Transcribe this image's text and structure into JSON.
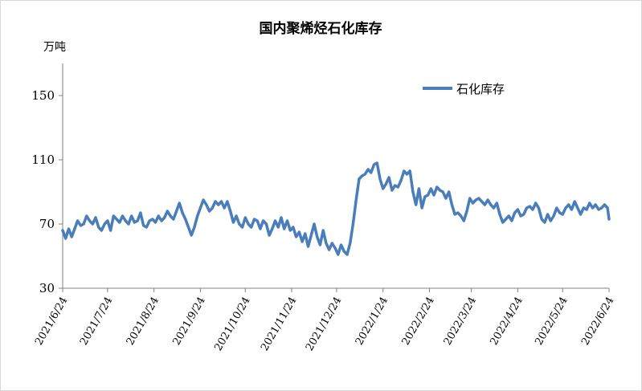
{
  "chart_data": {
    "type": "line",
    "title": "国内聚烯烃石化库存",
    "ylabel": "万吨",
    "xlabel": "",
    "ylim": [
      30,
      170
    ],
    "yticks": [
      30,
      70,
      110,
      150
    ],
    "x_start": "2021-06-24",
    "x_end": "2022-06-24",
    "x_ticks": [
      "2021/6/24",
      "2021/7/24",
      "2021/8/24",
      "2021/9/24",
      "2021/10/24",
      "2021/11/24",
      "2021/12/24",
      "2022/1/24",
      "2022/2/24",
      "2022/3/24",
      "2022/4/24",
      "2022/5/24",
      "2022/6/24"
    ],
    "grid": false,
    "legend_position": "top-right",
    "series": [
      {
        "name": "石化库存",
        "color": "#4a7ebb",
        "points": [
          [
            "2021-06-24",
            66
          ],
          [
            "2021-06-26",
            61
          ],
          [
            "2021-06-28",
            67
          ],
          [
            "2021-06-30",
            62
          ],
          [
            "2021-07-02",
            67
          ],
          [
            "2021-07-04",
            72
          ],
          [
            "2021-07-06",
            69
          ],
          [
            "2021-07-08",
            70
          ],
          [
            "2021-07-10",
            75
          ],
          [
            "2021-07-12",
            72
          ],
          [
            "2021-07-14",
            70
          ],
          [
            "2021-07-16",
            74
          ],
          [
            "2021-07-18",
            68
          ],
          [
            "2021-07-20",
            66
          ],
          [
            "2021-07-22",
            70
          ],
          [
            "2021-07-24",
            72
          ],
          [
            "2021-07-26",
            66
          ],
          [
            "2021-07-28",
            75
          ],
          [
            "2021-07-30",
            73
          ],
          [
            "2021-08-01",
            71
          ],
          [
            "2021-08-03",
            75
          ],
          [
            "2021-08-05",
            72
          ],
          [
            "2021-08-07",
            70
          ],
          [
            "2021-08-09",
            75
          ],
          [
            "2021-08-11",
            71
          ],
          [
            "2021-08-13",
            72
          ],
          [
            "2021-08-15",
            77
          ],
          [
            "2021-08-17",
            69
          ],
          [
            "2021-08-19",
            68
          ],
          [
            "2021-08-21",
            72
          ],
          [
            "2021-08-23",
            73
          ],
          [
            "2021-08-25",
            71
          ],
          [
            "2021-08-27",
            75
          ],
          [
            "2021-08-29",
            72
          ],
          [
            "2021-08-31",
            74
          ],
          [
            "2021-09-02",
            78
          ],
          [
            "2021-09-04",
            75
          ],
          [
            "2021-09-06",
            73
          ],
          [
            "2021-09-08",
            78
          ],
          [
            "2021-09-10",
            83
          ],
          [
            "2021-09-12",
            77
          ],
          [
            "2021-09-14",
            73
          ],
          [
            "2021-09-16",
            68
          ],
          [
            "2021-09-18",
            63
          ],
          [
            "2021-09-20",
            68
          ],
          [
            "2021-09-22",
            75
          ],
          [
            "2021-09-24",
            80
          ],
          [
            "2021-09-26",
            85
          ],
          [
            "2021-09-28",
            82
          ],
          [
            "2021-09-30",
            78
          ],
          [
            "2021-10-02",
            80
          ],
          [
            "2021-10-04",
            84
          ],
          [
            "2021-10-06",
            82
          ],
          [
            "2021-10-08",
            84
          ],
          [
            "2021-10-10",
            80
          ],
          [
            "2021-10-12",
            84
          ],
          [
            "2021-10-14",
            78
          ],
          [
            "2021-10-16",
            71
          ],
          [
            "2021-10-18",
            75
          ],
          [
            "2021-10-20",
            70
          ],
          [
            "2021-10-22",
            68
          ],
          [
            "2021-10-24",
            74
          ],
          [
            "2021-10-26",
            70
          ],
          [
            "2021-10-28",
            68
          ],
          [
            "2021-10-30",
            73
          ],
          [
            "2021-11-01",
            72
          ],
          [
            "2021-11-03",
            67
          ],
          [
            "2021-11-05",
            72
          ],
          [
            "2021-11-07",
            70
          ],
          [
            "2021-11-09",
            63
          ],
          [
            "2021-11-11",
            67
          ],
          [
            "2021-11-13",
            72
          ],
          [
            "2021-11-15",
            68
          ],
          [
            "2021-11-17",
            74
          ],
          [
            "2021-11-19",
            67
          ],
          [
            "2021-11-21",
            72
          ],
          [
            "2021-11-23",
            66
          ],
          [
            "2021-11-25",
            68
          ],
          [
            "2021-11-27",
            62
          ],
          [
            "2021-11-29",
            65
          ],
          [
            "2021-12-01",
            59
          ],
          [
            "2021-12-03",
            64
          ],
          [
            "2021-12-05",
            56
          ],
          [
            "2021-12-07",
            63
          ],
          [
            "2021-12-09",
            70
          ],
          [
            "2021-12-11",
            62
          ],
          [
            "2021-12-13",
            57
          ],
          [
            "2021-12-15",
            66
          ],
          [
            "2021-12-17",
            58
          ],
          [
            "2021-12-19",
            54
          ],
          [
            "2021-12-21",
            58
          ],
          [
            "2021-12-23",
            55
          ],
          [
            "2021-12-25",
            51
          ],
          [
            "2021-12-27",
            57
          ],
          [
            "2021-12-29",
            53
          ],
          [
            "2021-12-31",
            51
          ],
          [
            "2022-01-02",
            58
          ],
          [
            "2022-01-04",
            70
          ],
          [
            "2022-01-06",
            85
          ],
          [
            "2022-01-08",
            98
          ],
          [
            "2022-01-10",
            100
          ],
          [
            "2022-01-12",
            101
          ],
          [
            "2022-01-14",
            104
          ],
          [
            "2022-01-16",
            102
          ],
          [
            "2022-01-18",
            107
          ],
          [
            "2022-01-20",
            108
          ],
          [
            "2022-01-22",
            98
          ],
          [
            "2022-01-24",
            92
          ],
          [
            "2022-01-26",
            95
          ],
          [
            "2022-01-28",
            99
          ],
          [
            "2022-01-30",
            91
          ],
          [
            "2022-02-01",
            94
          ],
          [
            "2022-02-03",
            93
          ],
          [
            "2022-02-05",
            97
          ],
          [
            "2022-02-07",
            103
          ],
          [
            "2022-02-09",
            101
          ],
          [
            "2022-02-11",
            103
          ],
          [
            "2022-02-13",
            90
          ],
          [
            "2022-02-15",
            82
          ],
          [
            "2022-02-17",
            92
          ],
          [
            "2022-02-19",
            80
          ],
          [
            "2022-02-21",
            87
          ],
          [
            "2022-02-23",
            88
          ],
          [
            "2022-02-25",
            92
          ],
          [
            "2022-02-27",
            88
          ],
          [
            "2022-03-01",
            93
          ],
          [
            "2022-03-03",
            91
          ],
          [
            "2022-03-05",
            90
          ],
          [
            "2022-03-07",
            86
          ],
          [
            "2022-03-09",
            90
          ],
          [
            "2022-03-11",
            82
          ],
          [
            "2022-03-13",
            76
          ],
          [
            "2022-03-15",
            77
          ],
          [
            "2022-03-17",
            75
          ],
          [
            "2022-03-19",
            72
          ],
          [
            "2022-03-21",
            78
          ],
          [
            "2022-03-23",
            86
          ],
          [
            "2022-03-25",
            83
          ],
          [
            "2022-03-27",
            85
          ],
          [
            "2022-03-29",
            86
          ],
          [
            "2022-03-31",
            84
          ],
          [
            "2022-04-02",
            82
          ],
          [
            "2022-04-04",
            85
          ],
          [
            "2022-04-06",
            82
          ],
          [
            "2022-04-08",
            80
          ],
          [
            "2022-04-10",
            83
          ],
          [
            "2022-04-12",
            76
          ],
          [
            "2022-04-14",
            71
          ],
          [
            "2022-04-16",
            73
          ],
          [
            "2022-04-18",
            75
          ],
          [
            "2022-04-20",
            72
          ],
          [
            "2022-04-22",
            77
          ],
          [
            "2022-04-24",
            79
          ],
          [
            "2022-04-26",
            75
          ],
          [
            "2022-04-28",
            76
          ],
          [
            "2022-04-30",
            80
          ],
          [
            "2022-05-02",
            81
          ],
          [
            "2022-05-04",
            79
          ],
          [
            "2022-05-06",
            83
          ],
          [
            "2022-05-08",
            80
          ],
          [
            "2022-05-10",
            73
          ],
          [
            "2022-05-12",
            71
          ],
          [
            "2022-05-14",
            76
          ],
          [
            "2022-05-16",
            72
          ],
          [
            "2022-05-18",
            75
          ],
          [
            "2022-05-20",
            80
          ],
          [
            "2022-05-22",
            77
          ],
          [
            "2022-05-24",
            76
          ],
          [
            "2022-05-26",
            80
          ],
          [
            "2022-05-28",
            82
          ],
          [
            "2022-05-30",
            79
          ],
          [
            "2022-06-01",
            84
          ],
          [
            "2022-06-03",
            80
          ],
          [
            "2022-06-05",
            76
          ],
          [
            "2022-06-07",
            80
          ],
          [
            "2022-06-09",
            79
          ],
          [
            "2022-06-11",
            83
          ],
          [
            "2022-06-13",
            80
          ],
          [
            "2022-06-15",
            82
          ],
          [
            "2022-06-17",
            79
          ],
          [
            "2022-06-19",
            80
          ],
          [
            "2022-06-21",
            82
          ],
          [
            "2022-06-23",
            80
          ],
          [
            "2022-06-24",
            73
          ]
        ]
      }
    ]
  }
}
